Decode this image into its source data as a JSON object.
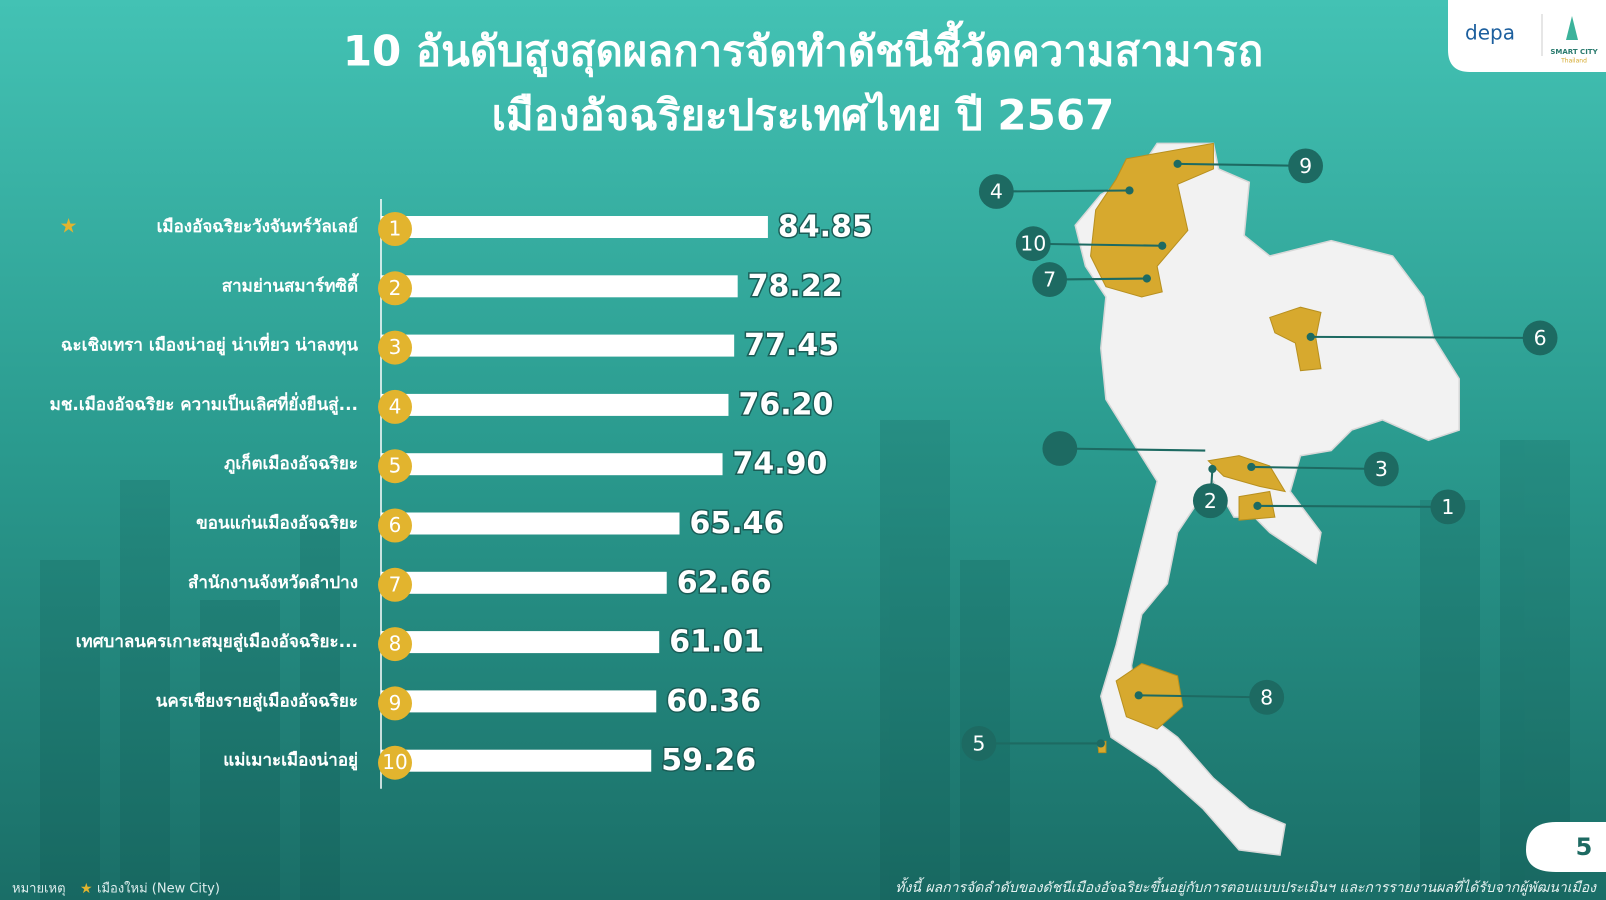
{
  "header": {
    "title_line1": "10 อันดับสูงสุดผลการจัดทำดัชนีชี้วัดความสามารถ",
    "title_line2": "เมืองอัจฉริยะประเทศไทย ปี 2567"
  },
  "logo": {
    "brand": "depa",
    "sub1": "SMART CITY",
    "sub2": "Thailand"
  },
  "chart_data": {
    "type": "bar",
    "orientation": "horizontal",
    "categories": [
      "เมืองอัจฉริยะวังจันทร์วัลเลย์",
      "สามย่านสมาร์ทซิตี้",
      "ฉะเชิงเทรา เมืองน่าอยู่ น่าเที่ยว น่าลงทุน",
      "มช.เมืองอัจฉริยะ ความเป็นเลิศที่ยั่งยืนสู่...",
      "ภูเก็ตเมืองอัจฉริยะ",
      "ขอนแก่นเมืองอัจฉริยะ",
      "สำนักงานจังหวัดลำปาง",
      "เทศบาลนครเกาะสมุยสู่เมืองอัจฉริยะ...",
      "นครเชียงรายสู่เมืองอัจฉริยะ",
      "แม่เมาะเมืองน่าอยู่"
    ],
    "ranks": [
      1,
      2,
      3,
      4,
      5,
      6,
      7,
      8,
      9,
      10
    ],
    "values": [
      84.85,
      78.22,
      77.45,
      76.2,
      74.9,
      65.46,
      62.66,
      61.01,
      60.36,
      59.26
    ],
    "value_labels": [
      "84.85",
      "78.22",
      "77.45",
      "76.20",
      "74.90",
      "65.46",
      "62.66",
      "61.01",
      "60.36",
      "59.26"
    ],
    "color": "#ffffff",
    "rank_color": "#e2b42e",
    "xlim": [
      0,
      100
    ]
  },
  "map": {
    "markers": [
      1,
      2,
      3,
      4,
      5,
      6,
      7,
      8,
      9,
      10
    ]
  },
  "page_number": 5,
  "footer": {
    "note_label": "หมายเหตุ",
    "legend_text": "เมืองใหม่ (New City)",
    "disclaimer": "ทั้งนี้ ผลการจัดลำดับของดัชนีเมืองอัจฉริยะขึ้นอยู่กับการตอบแบบประเมินฯ และการรายงานผลที่ได้รับจากผู้พัฒนาเมือง"
  }
}
